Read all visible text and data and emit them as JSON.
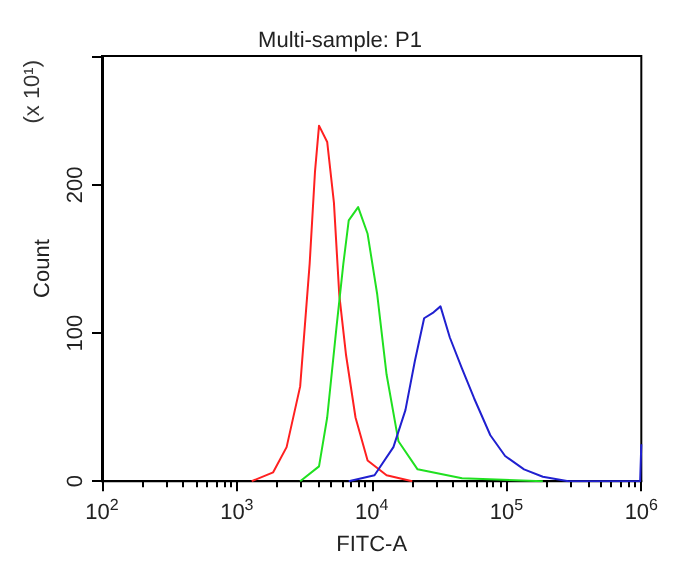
{
  "chart_data": {
    "type": "line",
    "title": "Multi-sample: P1",
    "xlabel": "FITC-A",
    "ylabel": "Count",
    "annotations": [
      "(x 10¹)"
    ],
    "log": "x",
    "xlim": [
      100,
      1000000
    ],
    "xticks": [
      {
        "value": 100,
        "label": "10$^{2}$"
      },
      {
        "value": 1000,
        "label": "10$^{3}$"
      },
      {
        "value": 10000,
        "label": "10$^{4}$"
      },
      {
        "value": 100000,
        "label": "10$^{5}$"
      },
      {
        "value": 1000000,
        "label": "10$^{6}$"
      }
    ],
    "ylim": [
      0,
      287
    ],
    "yticks": [
      0,
      100,
      200
    ],
    "grid": false,
    "marker": "none",
    "line_style": "solid",
    "series": [
      {
        "color": "#ff2020",
        "x": [
          1290,
          1860,
          2340,
          2950,
          3470,
          3800,
          4070,
          4680,
          5250,
          5750,
          6460,
          7590,
          9330,
          12900,
          20000
        ],
        "values": [
          0,
          6,
          23,
          64,
          147,
          209,
          240,
          229,
          188,
          126,
          85,
          43,
          14,
          4,
          0
        ]
      },
      {
        "color": "#20e020",
        "x": [
          2950,
          4070,
          4680,
          5500,
          6170,
          6760,
          7940,
          9330,
          11000,
          12900,
          15800,
          21900,
          46800,
          186000
        ],
        "values": [
          0,
          10,
          43,
          105,
          147,
          176,
          185,
          167,
          126,
          72,
          27,
          8,
          2,
          0
        ]
      },
      {
        "color": "#2020d0",
        "x": [
          6760,
          10500,
          14500,
          17800,
          20900,
          24500,
          28800,
          32400,
          38000,
          46800,
          57500,
          75900,
          97700,
          135000,
          186000,
          288000,
          980000,
          1000000
        ],
        "values": [
          0,
          4,
          23,
          48,
          81,
          110,
          114,
          118,
          97,
          76,
          56,
          31,
          17,
          8,
          3,
          0,
          0,
          25
        ]
      }
    ]
  }
}
